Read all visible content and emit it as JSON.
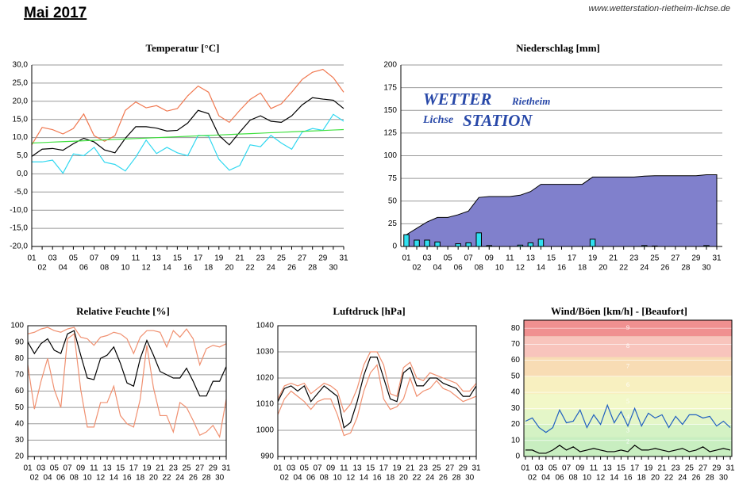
{
  "header": {
    "title": "Mai 2017",
    "url": "www.wetterstation-rietheim-lichse.de"
  },
  "chart_data": [
    {
      "type": "line",
      "title": "Temperatur [°C]",
      "categories": [
        "01",
        "02",
        "03",
        "04",
        "05",
        "06",
        "07",
        "08",
        "09",
        "10",
        "11",
        "12",
        "13",
        "14",
        "15",
        "16",
        "17",
        "18",
        "19",
        "20",
        "21",
        "22",
        "23",
        "24",
        "25",
        "26",
        "27",
        "28",
        "29",
        "30",
        "31"
      ],
      "ylim": [
        -20,
        30
      ],
      "yticks": [
        {
          "value": -20,
          "label": "-20,0"
        },
        {
          "value": -15,
          "label": "-15,0"
        },
        {
          "value": -10,
          "label": "-10,0"
        },
        {
          "value": -5,
          "label": "-5,0"
        },
        {
          "value": 0,
          "label": "0,0"
        },
        {
          "value": 5,
          "label": "5,0"
        },
        {
          "value": 10,
          "label": "10,0"
        },
        {
          "value": 15,
          "label": "15,0"
        },
        {
          "value": 20,
          "label": "20,0"
        },
        {
          "value": 25,
          "label": "25,0"
        },
        {
          "value": 30,
          "label": "30,0"
        }
      ],
      "grid": true,
      "series": [
        {
          "color": "#f07850",
          "values": [
            8,
            12.8,
            12.2,
            11,
            12.5,
            16.5,
            10.5,
            9,
            10.5,
            17.5,
            19.8,
            18.2,
            18.8,
            17.3,
            18,
            21.5,
            24.2,
            22.5,
            16,
            14.2,
            17.5,
            20.5,
            22.3,
            18,
            19.3,
            22.5,
            26,
            28,
            28.8,
            26.5,
            22.5
          ]
        },
        {
          "color": "#30d8f0",
          "values": [
            3.3,
            3.3,
            3.8,
            0.2,
            5.5,
            5,
            7.3,
            3.2,
            2.6,
            0.8,
            4.6,
            9.3,
            5.6,
            7.3,
            5.8,
            5,
            10.6,
            10.4,
            4,
            1,
            2.3,
            8,
            7.5,
            10.6,
            8.5,
            6.8,
            11.5,
            12.5,
            12,
            16.4,
            14.5
          ]
        },
        {
          "color": "#000000",
          "values": [
            4.8,
            6.8,
            7,
            6.5,
            8.3,
            9.8,
            8.8,
            6.6,
            5.8,
            9.8,
            13,
            13,
            12.6,
            11.8,
            12,
            14,
            17.5,
            16.6,
            10.6,
            8,
            11.5,
            14.8,
            16,
            14.5,
            14.2,
            16,
            19,
            21,
            20.6,
            20.3,
            18
          ]
        },
        {
          "color": "#40e040",
          "values": [
            8.5,
            8.62,
            8.75,
            8.87,
            8.99,
            9.12,
            9.24,
            9.36,
            9.49,
            9.61,
            9.73,
            9.86,
            9.98,
            10.1,
            10.23,
            10.35,
            10.47,
            10.6,
            10.72,
            10.84,
            10.97,
            11.09,
            11.21,
            11.34,
            11.46,
            11.58,
            11.71,
            11.83,
            11.95,
            12.08,
            12.2
          ]
        }
      ]
    },
    {
      "type": "combo",
      "title": "Niederschlag [mm]",
      "categories": [
        "01",
        "02",
        "03",
        "04",
        "05",
        "06",
        "07",
        "08",
        "09",
        "10",
        "11",
        "12",
        "13",
        "14",
        "15",
        "16",
        "17",
        "18",
        "19",
        "20",
        "21",
        "22",
        "23",
        "24",
        "25",
        "26",
        "27",
        "28",
        "29",
        "30",
        "31"
      ],
      "ylim": [
        0,
        200
      ],
      "yticks": [
        0,
        25,
        50,
        75,
        100,
        125,
        150,
        175,
        200
      ],
      "grid": true,
      "annotations": [
        "WETTER",
        "Rietheim",
        "Lichse",
        "STATION"
      ],
      "series": [
        {
          "type": "area",
          "color": "#8080cc",
          "values": [
            13,
            20,
            27,
            32,
            32,
            35,
            39,
            54,
            55,
            55,
            55,
            56.5,
            60.5,
            68.5,
            68.5,
            68.5,
            68.5,
            68.5,
            76.5,
            76.5,
            76.5,
            76.5,
            76.5,
            77.5,
            78,
            78,
            78,
            78,
            78,
            79,
            79
          ]
        },
        {
          "type": "bar",
          "color": "#30e0f0",
          "values": [
            13,
            7,
            7,
            5,
            0,
            3,
            4,
            15,
            1,
            0,
            0,
            1.5,
            4,
            8,
            0,
            0,
            0,
            0,
            8,
            0,
            0,
            0,
            0,
            1,
            0.5,
            0,
            0,
            0,
            0,
            1,
            0
          ]
        }
      ]
    },
    {
      "type": "line",
      "title": "Relative Feuchte [%]",
      "categories": [
        "01",
        "02",
        "03",
        "04",
        "05",
        "06",
        "07",
        "08",
        "09",
        "10",
        "11",
        "12",
        "13",
        "14",
        "15",
        "16",
        "17",
        "18",
        "19",
        "20",
        "21",
        "22",
        "23",
        "24",
        "25",
        "26",
        "27",
        "28",
        "29",
        "30",
        "31"
      ],
      "ylim": [
        20,
        100
      ],
      "yticks": [
        20,
        30,
        40,
        50,
        60,
        70,
        80,
        90,
        100
      ],
      "grid": true,
      "series": [
        {
          "color": "#f09070",
          "values": [
            95,
            96,
            98,
            99,
            97,
            96,
            98,
            99,
            93,
            92,
            88,
            93,
            94,
            96,
            95,
            92,
            83,
            93,
            97,
            97,
            96,
            87,
            97,
            93,
            98,
            92,
            76,
            86,
            88,
            87,
            89
          ]
        },
        {
          "color": "#f09070",
          "values": [
            76,
            49,
            66,
            80,
            61,
            50,
            92,
            95,
            61,
            38,
            38,
            53,
            53,
            63,
            45,
            40,
            38,
            55,
            88,
            62,
            45,
            45,
            35,
            53,
            50,
            42,
            33,
            35,
            39,
            32,
            55
          ]
        },
        {
          "color": "#000000",
          "values": [
            90,
            83,
            89,
            92,
            85,
            83,
            95,
            97,
            82,
            68,
            67,
            80,
            82,
            87,
            77,
            65,
            63,
            80,
            91,
            82,
            72,
            70,
            68,
            68,
            74,
            66,
            57,
            57,
            66,
            66,
            75
          ]
        }
      ]
    },
    {
      "type": "line",
      "title": "Luftdruck [hPa]",
      "categories": [
        "01",
        "02",
        "03",
        "04",
        "05",
        "06",
        "07",
        "08",
        "09",
        "10",
        "11",
        "12",
        "13",
        "14",
        "15",
        "16",
        "17",
        "18",
        "19",
        "20",
        "21",
        "22",
        "23",
        "24",
        "25",
        "26",
        "27",
        "28",
        "29",
        "30",
        "31"
      ],
      "ylim": [
        990,
        1040
      ],
      "yticks": [
        990,
        1000,
        1010,
        1020,
        1030,
        1040
      ],
      "grid": true,
      "series": [
        {
          "color": "#f09070",
          "values": [
            1012,
            1017,
            1018,
            1017,
            1018,
            1014,
            1016,
            1018,
            1017,
            1015,
            1007,
            1010,
            1016,
            1025,
            1030,
            1030,
            1025,
            1014,
            1013,
            1024,
            1026,
            1020,
            1019,
            1022,
            1021,
            1020,
            1019,
            1018,
            1015,
            1015,
            1018
          ]
        },
        {
          "color": "#f09070",
          "values": [
            1006,
            1012,
            1015,
            1013,
            1011,
            1008,
            1011,
            1012,
            1012,
            1006,
            998,
            999,
            1005,
            1015,
            1022,
            1025,
            1012,
            1008,
            1009,
            1012,
            1020,
            1013,
            1015,
            1016,
            1019,
            1016,
            1015,
            1013,
            1011,
            1012,
            1013
          ]
        },
        {
          "color": "#000000",
          "values": [
            1011,
            1016,
            1017,
            1015,
            1017,
            1011,
            1014,
            1017,
            1015,
            1013,
            1001,
            1003,
            1011,
            1021,
            1028,
            1028,
            1020,
            1012,
            1011,
            1022,
            1024,
            1017,
            1017,
            1020,
            1020,
            1018,
            1017,
            1016,
            1013,
            1013,
            1017
          ]
        }
      ]
    },
    {
      "type": "line",
      "title": "Wind/Böen [km/h] - [Beaufort]",
      "categories": [
        "01",
        "02",
        "03",
        "04",
        "05",
        "06",
        "07",
        "08",
        "09",
        "10",
        "11",
        "12",
        "13",
        "14",
        "15",
        "16",
        "17",
        "18",
        "19",
        "20",
        "21",
        "22",
        "23",
        "24",
        "25",
        "26",
        "27",
        "28",
        "29",
        "30",
        "31"
      ],
      "ylim": [
        0,
        85
      ],
      "yticks": [
        0,
        10,
        20,
        30,
        40,
        50,
        60,
        70,
        80
      ],
      "grid": true,
      "bands": [
        {
          "label": "2",
          "from": 6,
          "to": 12,
          "color": "#c8eec0"
        },
        {
          "label": "3",
          "from": 12,
          "to": 20,
          "color": "#d4f2c4"
        },
        {
          "label": "4",
          "from": 20,
          "to": 29,
          "color": "#e4f6c8"
        },
        {
          "label": "5",
          "from": 29,
          "to": 39,
          "color": "#f2f8c8"
        },
        {
          "label": "6",
          "from": 39,
          "to": 50,
          "color": "#f8f0c0"
        },
        {
          "label": "7",
          "from": 50,
          "to": 62,
          "color": "#f8dcb4"
        },
        {
          "label": "8",
          "from": 62,
          "to": 75,
          "color": "#f8c4bc"
        },
        {
          "label": "9",
          "from": 75,
          "to": 85,
          "color": "#f09090"
        }
      ],
      "series": [
        {
          "color": "#2060c0",
          "values": [
            22,
            24,
            18,
            15,
            18,
            29,
            21,
            22,
            29,
            18,
            26,
            20,
            32,
            21,
            28,
            19,
            30,
            19,
            27,
            24,
            26,
            18,
            25,
            20,
            26,
            26,
            24,
            25,
            19,
            22,
            18
          ]
        },
        {
          "color": "#000000",
          "values": [
            4,
            4,
            2,
            2,
            4,
            7,
            4,
            6,
            3,
            4,
            5,
            4,
            3,
            3,
            4,
            3,
            7,
            4,
            4,
            5,
            4,
            3,
            4,
            5,
            3,
            4,
            6,
            3,
            4,
            5,
            4
          ]
        }
      ]
    }
  ]
}
